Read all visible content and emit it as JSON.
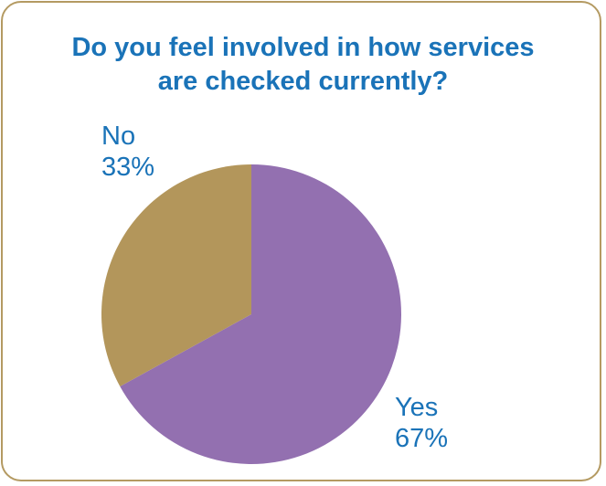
{
  "chart_data": {
    "type": "pie",
    "title_lines": [
      "Do you feel involved in how services",
      "are checked currently?"
    ],
    "slices": [
      {
        "label": "Yes",
        "value": 67,
        "value_label": "67%",
        "color": "#9370b0"
      },
      {
        "label": "No",
        "value": 33,
        "value_label": "33%",
        "color": "#b3965b"
      }
    ],
    "legend": "none",
    "border_color": "#b49a62",
    "text_color": "#1a73b8"
  }
}
